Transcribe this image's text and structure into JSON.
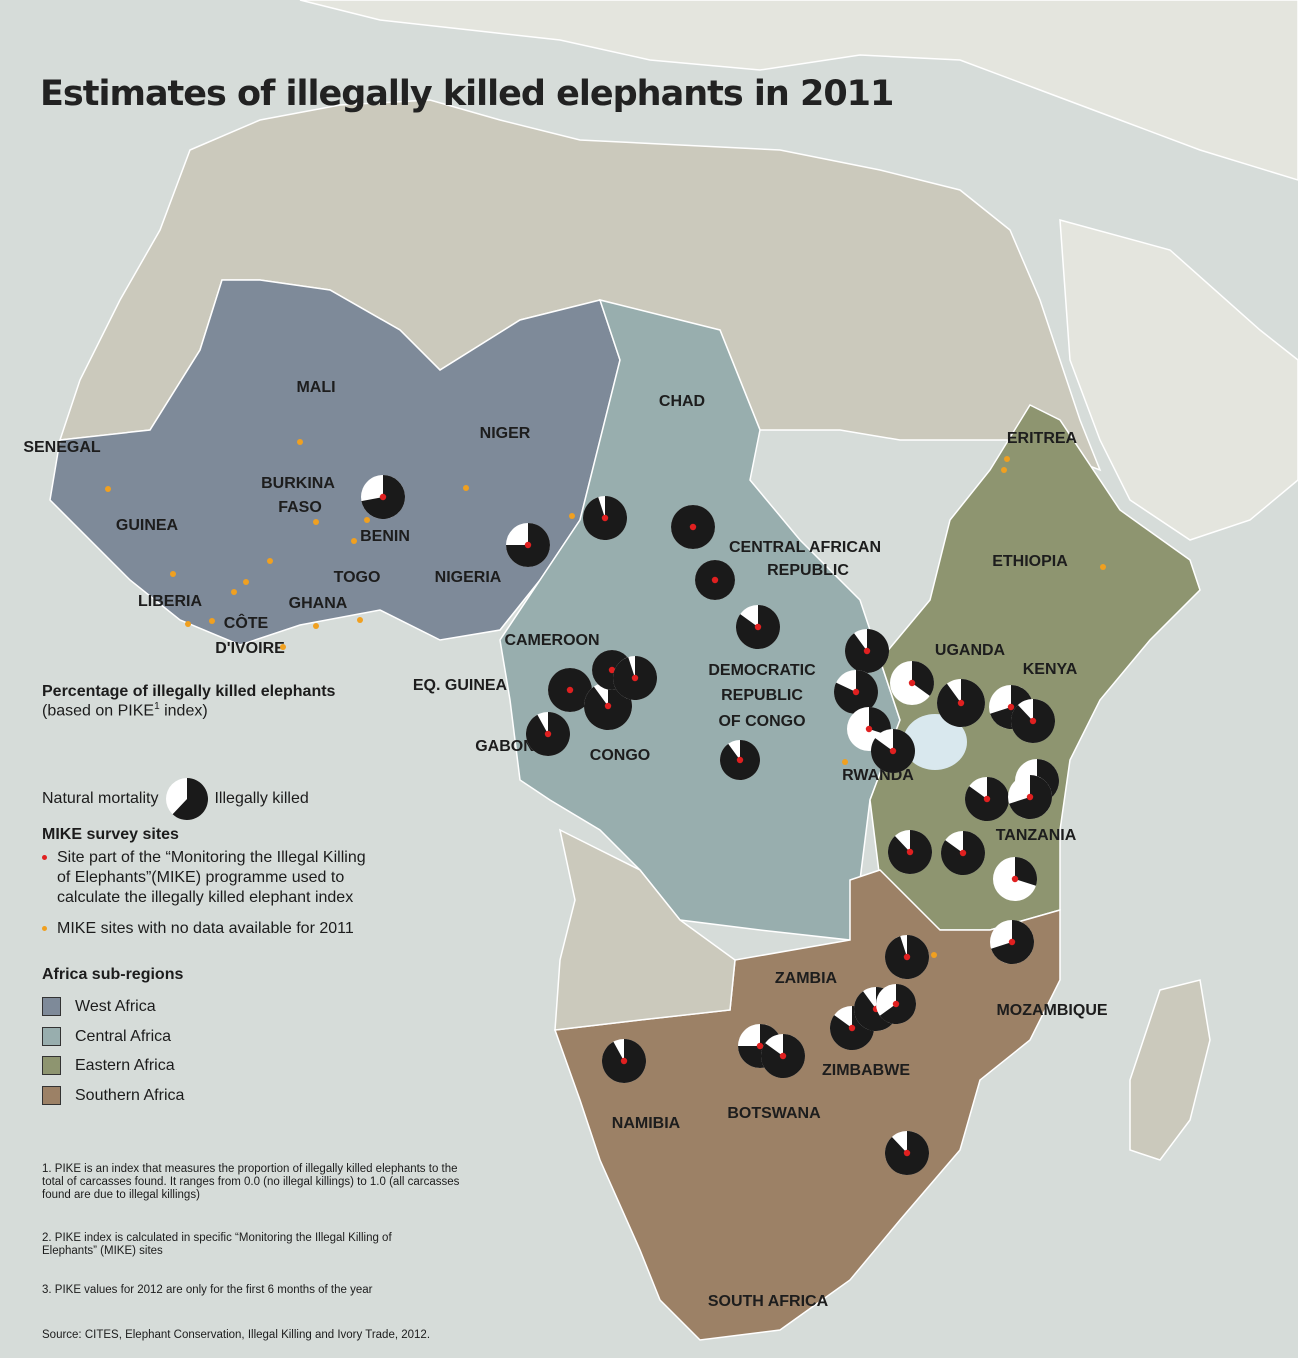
{
  "title": "Estimates of illegally killed elephants in 2011",
  "colors": {
    "sea": "#d6dcd9",
    "land_other": "#cbc9bc",
    "west_africa": "#7e8a99",
    "central_africa": "#98aeae",
    "eastern_africa": "#8e9570",
    "southern_africa": "#9c8166",
    "mike_site": "#e02020",
    "no_data_site": "#f0a020",
    "illegal": "#1a1a1a",
    "natural": "#ffffff"
  },
  "countries": [
    {
      "name": "MALI",
      "region": "west"
    },
    {
      "name": "NIGER",
      "region": "west"
    },
    {
      "name": "SENEGAL",
      "region": "west"
    },
    {
      "name": "BURKINA",
      "region": "west"
    },
    {
      "name": "FASO",
      "region": "west"
    },
    {
      "name": "BENIN",
      "region": "west"
    },
    {
      "name": "GUINEA",
      "region": "west"
    },
    {
      "name": "TOGO",
      "region": "west"
    },
    {
      "name": "NIGERIA",
      "region": "west"
    },
    {
      "name": "LIBERIA",
      "region": "west"
    },
    {
      "name": "GHANA",
      "region": "west"
    },
    {
      "name": "CÔTE",
      "region": "west"
    },
    {
      "name": "D'IVOIRE",
      "region": "west"
    },
    {
      "name": "CHAD",
      "region": "central"
    },
    {
      "name": "CENTRAL AFRICAN",
      "region": "central"
    },
    {
      "name": "REPUBLIC",
      "region": "central"
    },
    {
      "name": "CAMEROON",
      "region": "central"
    },
    {
      "name": "EQ. GUINEA",
      "region": "central"
    },
    {
      "name": "GABON",
      "region": "central"
    },
    {
      "name": "CONGO",
      "region": "central"
    },
    {
      "name": "DEMOCRATIC",
      "region": "central"
    },
    {
      "name": "REPUBLIC",
      "region": "central"
    },
    {
      "name": "OF CONGO",
      "region": "central"
    },
    {
      "name": "RWANDA",
      "region": "central"
    },
    {
      "name": "ERITREA",
      "region": "east"
    },
    {
      "name": "ETHIOPIA",
      "region": "east"
    },
    {
      "name": "UGANDA",
      "region": "east"
    },
    {
      "name": "KENYA",
      "region": "east"
    },
    {
      "name": "TANZANIA",
      "region": "east"
    },
    {
      "name": "ZAMBIA",
      "region": "south"
    },
    {
      "name": "MOZAMBIQUE",
      "region": "south"
    },
    {
      "name": "ZIMBABWE",
      "region": "south"
    },
    {
      "name": "NAMIBIA",
      "region": "south"
    },
    {
      "name": "BOTSWANA",
      "region": "south"
    },
    {
      "name": "SOUTH AFRICA",
      "region": "south"
    }
  ],
  "pike_sites": [
    {
      "pike": 0.72
    },
    {
      "pike": 0.95
    },
    {
      "pike": 0.75
    },
    {
      "pike": 1.0
    },
    {
      "pike": 1.0
    },
    {
      "pike": 0.85
    },
    {
      "pike": 0.9
    },
    {
      "pike": 0.82
    },
    {
      "pike": 0.3
    },
    {
      "pike": 0.35
    },
    {
      "pike": 0.9
    },
    {
      "pike": 0.7
    },
    {
      "pike": 0.88
    },
    {
      "pike": 1.0
    },
    {
      "pike": 0.9
    },
    {
      "pike": 1.0
    },
    {
      "pike": 0.95
    },
    {
      "pike": 0.92
    },
    {
      "pike": 0.85
    },
    {
      "pike": 0.45
    },
    {
      "pike": 0.85
    },
    {
      "pike": 0.7
    },
    {
      "pike": 0.88
    },
    {
      "pike": 0.85
    },
    {
      "pike": 0.3
    },
    {
      "pike": 0.7
    },
    {
      "pike": 0.95
    },
    {
      "pike": 0.85
    },
    {
      "pike": 0.9
    },
    {
      "pike": 0.65
    },
    {
      "pike": 0.92
    },
    {
      "pike": 0.75
    },
    {
      "pike": 0.85
    },
    {
      "pike": 0.88
    },
    {
      "pike": 0.9
    },
    {
      "pike": 0.1
    },
    {
      "pike": 0.35
    },
    {
      "pike": 0.7
    },
    {
      "pike": 0.05
    }
  ],
  "no_data_sites_count": 26,
  "legend": {
    "pike_title": "Percentage of illegally killed elephants",
    "pike_sub_before": "(based on PIKE",
    "pike_sub_sup": "1",
    "pike_sub_after": " index)",
    "pike_legend_fraction": 0.62,
    "natural_label": "Natural mortality",
    "illegal_label": "Illegally killed",
    "mike_title": "MIKE survey sites",
    "mike_line1": "Site part of the “Monitoring the Illegal Killing",
    "mike_line2": "of Elephants”(MIKE)  programme used to",
    "mike_line3": "calculate the illegally killed elephant index",
    "nodata_label": "MIKE sites with no data available for 2011",
    "regions_title": "Africa sub-regions",
    "regions": [
      "West Africa",
      "Central Africa",
      "Eastern Africa",
      "Southern Africa"
    ]
  },
  "notes": {
    "n1": "1. PIKE is an index that measures the proportion of illegally killed elephants to the total of carcasses found. It ranges from 0.0 (no illegal killings) to 1.0 (all carcasses found are due to illegal killings)",
    "n2": "2. PIKE index is calculated in specific “Monitoring the Illegal Killing of Elephants” (MIKE) sites",
    "n3": "3. PIKE values for 2012 are only for the first 6 months of the year"
  },
  "source": "Source: CITES, Elephant Conservation, Illegal Killing and Ivory Trade, 2012."
}
